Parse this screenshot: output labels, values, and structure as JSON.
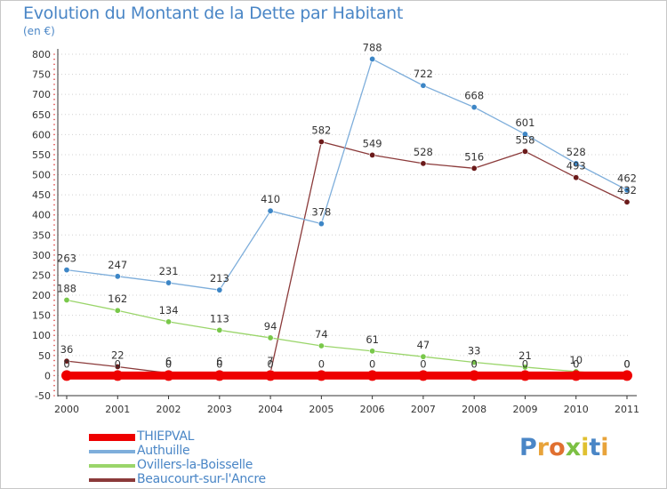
{
  "header": {
    "title": "Evolution du Montant de la Dette par Habitant",
    "subtitle": "(en €)"
  },
  "chart_data": {
    "type": "line",
    "x": [
      "2000",
      "2001",
      "2002",
      "2003",
      "2004",
      "2005",
      "2006",
      "2007",
      "2008",
      "2009",
      "2010",
      "2011"
    ],
    "ylim": [
      -50,
      800
    ],
    "yticks": [
      -50,
      0,
      50,
      100,
      150,
      200,
      250,
      300,
      350,
      400,
      450,
      500,
      550,
      600,
      650,
      700,
      750,
      800
    ],
    "grid": "horizontal-dotted",
    "legend_placement": "bottom-left",
    "series": [
      {
        "name": "Beaucourt-sur-l'Ancre",
        "color": "#8b3a3a",
        "marker": "#6b1a1a",
        "width": 1.3,
        "values": [
          36,
          22,
          6,
          6,
          7,
          582,
          549,
          528,
          516,
          558,
          493,
          432
        ]
      },
      {
        "name": "Ovillers-la-Boisselle",
        "color": "#9ad56a",
        "marker": "#79c84a",
        "width": 1.3,
        "values": [
          188,
          162,
          134,
          113,
          94,
          74,
          61,
          47,
          33,
          21,
          10,
          0
        ]
      },
      {
        "name": "Authuille",
        "color": "#7eaedb",
        "marker": "#3d86c6",
        "width": 1.3,
        "values": [
          263,
          247,
          231,
          213,
          410,
          378,
          788,
          722,
          668,
          601,
          528,
          462
        ]
      },
      {
        "name": "THIEPVAL",
        "color": "#ee0000",
        "marker": "#ee0000",
        "width": 9,
        "values": [
          0,
          0,
          0,
          0,
          0,
          0,
          0,
          0,
          0,
          0,
          0,
          0
        ]
      }
    ],
    "legend_order": [
      "THIEPVAL",
      "Authuille",
      "Ovillers-la-Boisselle",
      "Beaucourt-sur-l'Ancre"
    ]
  },
  "logo": {
    "text": "Proxiti",
    "colors": [
      "#4a86c6",
      "#e8a33a",
      "#e07030",
      "#7cc043",
      "#e0c030",
      "#4a86c6",
      "#e8a33a"
    ]
  }
}
